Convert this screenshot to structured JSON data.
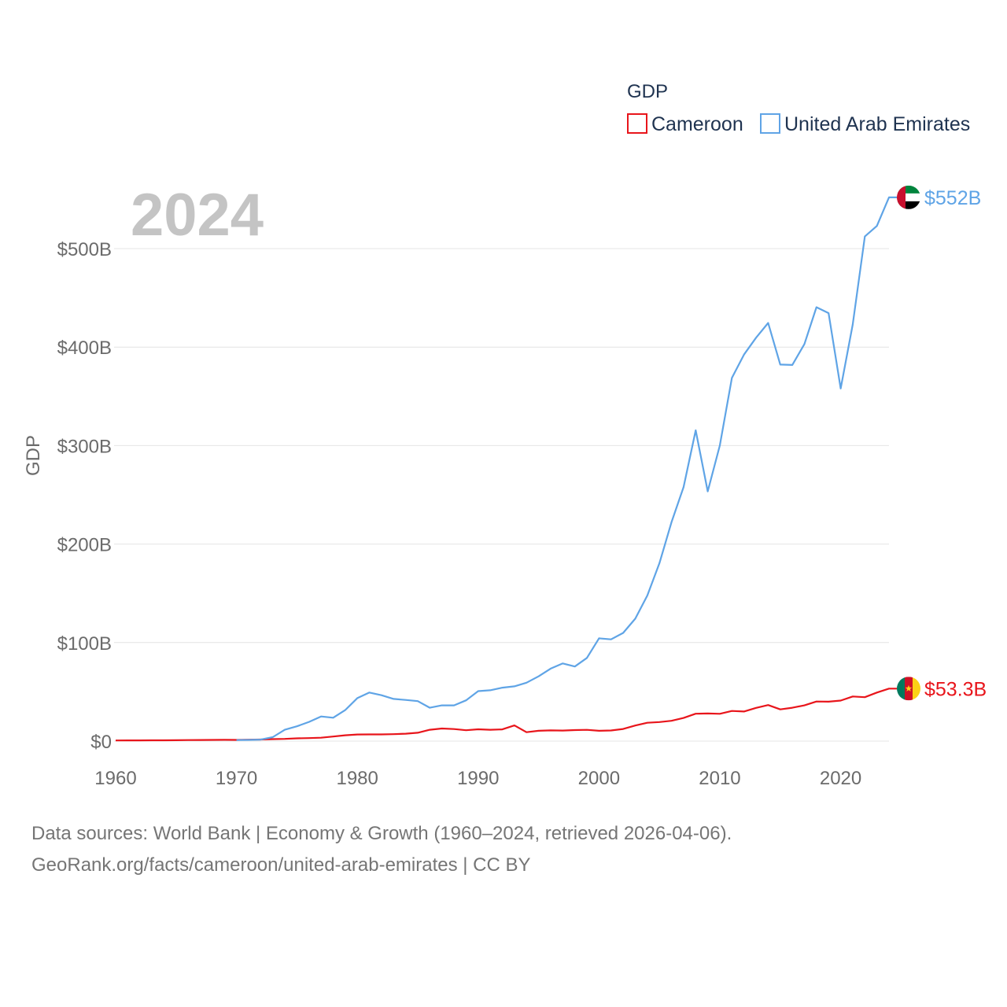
{
  "chart_data": {
    "type": "line",
    "title": "2024",
    "ylabel": "GDP",
    "xlabel": "",
    "xlim": [
      1960,
      2024
    ],
    "ylim": [
      0,
      552
    ],
    "x_ticks": [
      1960,
      1970,
      1980,
      1990,
      2000,
      2010,
      2020
    ],
    "y_ticks": [
      0,
      100,
      200,
      300,
      400,
      500
    ],
    "y_tick_labels": [
      "$0",
      "$100B",
      "$200B",
      "$300B",
      "$400B",
      "$500B"
    ],
    "legend": {
      "title": "GDP",
      "position": "top-right"
    },
    "grid": true,
    "series": [
      {
        "name": "Cameroon",
        "color": "#e8151b",
        "end_label": "$53.3B",
        "x": [
          1960,
          1961,
          1962,
          1963,
          1964,
          1965,
          1966,
          1967,
          1968,
          1969,
          1970,
          1971,
          1972,
          1973,
          1974,
          1975,
          1976,
          1977,
          1978,
          1979,
          1980,
          1981,
          1982,
          1983,
          1984,
          1985,
          1986,
          1987,
          1988,
          1989,
          1990,
          1991,
          1992,
          1993,
          1994,
          1995,
          1996,
          1997,
          1998,
          1999,
          2000,
          2001,
          2002,
          2003,
          2004,
          2005,
          2006,
          2007,
          2008,
          2009,
          2010,
          2011,
          2012,
          2013,
          2014,
          2015,
          2016,
          2017,
          2018,
          2019,
          2020,
          2021,
          2022,
          2023,
          2024
        ],
        "values": [
          0.6,
          0.7,
          0.7,
          0.8,
          0.8,
          0.9,
          1.0,
          1.1,
          1.2,
          1.3,
          1.2,
          1.4,
          1.6,
          2.0,
          2.2,
          2.8,
          3.0,
          3.4,
          4.6,
          5.9,
          6.7,
          6.8,
          6.8,
          7.0,
          7.5,
          8.5,
          11.5,
          12.8,
          12.2,
          11.0,
          12.0,
          11.5,
          11.9,
          15.9,
          9.0,
          10.5,
          10.9,
          10.7,
          11.2,
          11.4,
          10.5,
          10.8,
          12.3,
          15.8,
          18.6,
          19.3,
          20.6,
          23.5,
          27.8,
          28.0,
          27.7,
          30.6,
          30.0,
          33.7,
          36.6,
          32.2,
          33.9,
          36.3,
          40.2,
          40.0,
          41.1,
          45.3,
          44.6,
          49.3,
          53.3
        ]
      },
      {
        "name": "United Arab Emirates",
        "color": "#5fa4e6",
        "end_label": "$552B",
        "x": [
          1970,
          1971,
          1972,
          1973,
          1974,
          1975,
          1976,
          1977,
          1978,
          1979,
          1980,
          1981,
          1982,
          1983,
          1984,
          1985,
          1986,
          1987,
          1988,
          1989,
          1990,
          1991,
          1992,
          1993,
          1994,
          1995,
          1996,
          1997,
          1998,
          1999,
          2000,
          2001,
          2002,
          2003,
          2004,
          2005,
          2006,
          2007,
          2008,
          2009,
          2010,
          2011,
          2012,
          2013,
          2014,
          2015,
          2016,
          2017,
          2018,
          2019,
          2020,
          2021,
          2022,
          2023,
          2024
        ],
        "values": [
          1.0,
          1.2,
          1.5,
          4.0,
          11.5,
          15.0,
          19.5,
          25.0,
          23.7,
          31.5,
          43.6,
          49.3,
          46.6,
          42.8,
          41.8,
          40.6,
          33.9,
          36.3,
          36.3,
          41.4,
          50.7,
          51.6,
          54.2,
          55.6,
          59.3,
          65.7,
          73.6,
          78.8,
          75.7,
          84.4,
          104.3,
          103.3,
          109.8,
          124.3,
          147.8,
          180.6,
          222.1,
          257.9,
          315.5,
          253.5,
          300.2,
          368.7,
          392.4,
          409.5,
          424.5,
          382.3,
          381.9,
          403.1,
          440.5,
          434.5,
          358.0,
          422.9,
          512.3,
          523.0,
          552.0
        ]
      }
    ]
  },
  "footer": {
    "line1": "Data sources: World Bank | Economy & Growth (1960–2024, retrieved 2026-04-06).",
    "line2": "GeoRank.org/facts/cameroon/united-arab-emirates | CC BY"
  }
}
